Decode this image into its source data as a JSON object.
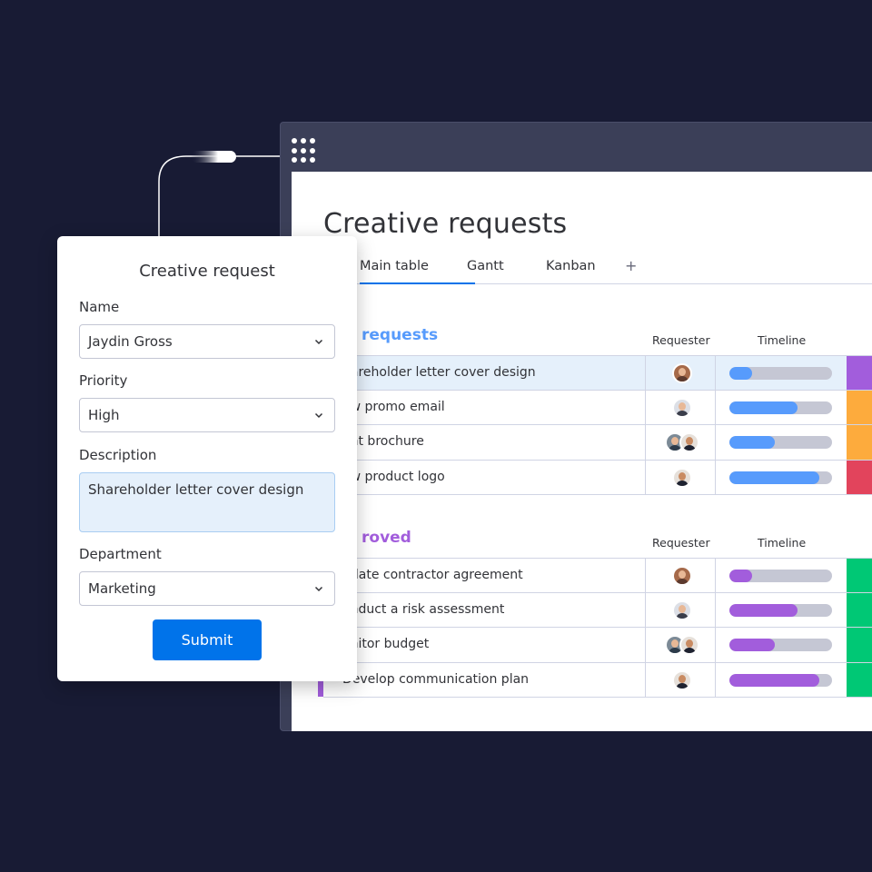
{
  "board": {
    "title": "Creative requests",
    "tabs": [
      {
        "label": "Main table",
        "active": true
      },
      {
        "label": "Gantt",
        "active": false
      },
      {
        "label": "Kanban",
        "active": false
      },
      {
        "label": "+",
        "active": false
      }
    ],
    "groups": [
      {
        "title": "requests",
        "color": "#579bfc",
        "columns": {
          "requester": "Requester",
          "timeline": "Timeline"
        },
        "rows": [
          {
            "name": "hareholder letter cover design",
            "avatars": [
              "av-a"
            ],
            "progress": 0.22,
            "status_color": "#a25ddc",
            "highlight": true
          },
          {
            "name": "ew promo email",
            "avatars": [
              "av-b"
            ],
            "progress": 0.66,
            "status_color": "#fdab3d",
            "highlight": false
          },
          {
            "name": "ent brochure",
            "avatars": [
              "av-c",
              "av-d"
            ],
            "progress": 0.44,
            "status_color": "#fdab3d",
            "highlight": false
          },
          {
            "name": "ew product logo",
            "avatars": [
              "av-d"
            ],
            "progress": 0.88,
            "status_color": "#e2445c",
            "highlight": false
          }
        ]
      },
      {
        "title": "roved",
        "color": "#a25ddc",
        "columns": {
          "requester": "Requester",
          "timeline": "Timeline"
        },
        "rows": [
          {
            "name": "pdate contractor agreement",
            "avatars": [
              "av-a"
            ],
            "progress": 0.22,
            "status_color": "#00c875",
            "highlight": false
          },
          {
            "name": "onduct a risk assessment",
            "avatars": [
              "av-b"
            ],
            "progress": 0.66,
            "status_color": "#00c875",
            "highlight": false
          },
          {
            "name": "onitor budget",
            "avatars": [
              "av-c",
              "av-d"
            ],
            "progress": 0.44,
            "status_color": "#00c875",
            "highlight": false
          },
          {
            "name": "Develop communication plan",
            "avatars": [
              "av-d"
            ],
            "progress": 0.88,
            "status_color": "#00c875",
            "highlight": false
          }
        ]
      }
    ]
  },
  "form": {
    "title": "Creative request",
    "name_label": "Name",
    "name_value": "Jaydin Gross",
    "priority_label": "Priority",
    "priority_value": "High",
    "description_label": "Description",
    "description_value": "Shareholder letter cover design",
    "department_label": "Department",
    "department_value": "Marketing",
    "submit_label": "Submit"
  }
}
